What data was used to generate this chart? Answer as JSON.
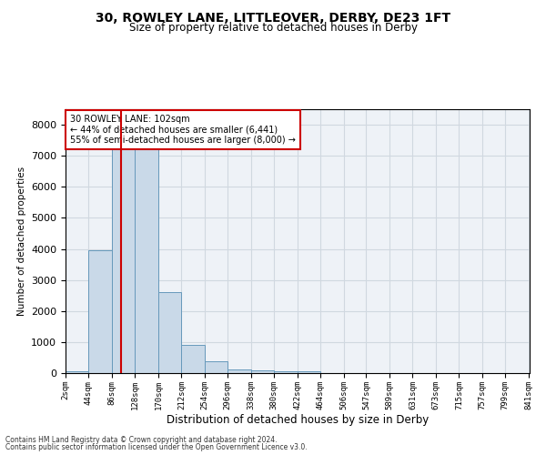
{
  "title1": "30, ROWLEY LANE, LITTLEOVER, DERBY, DE23 1FT",
  "title2": "Size of property relative to detached houses in Derby",
  "xlabel": "Distribution of detached houses by size in Derby",
  "ylabel": "Number of detached properties",
  "footnote1": "Contains HM Land Registry data © Crown copyright and database right 2024.",
  "footnote2": "Contains public sector information licensed under the Open Government Licence v3.0.",
  "annotation_title": "30 ROWLEY LANE: 102sqm",
  "annotation_line1": "← 44% of detached houses are smaller (6,441)",
  "annotation_line2": "55% of semi-detached houses are larger (8,000) →",
  "property_size_sqm": 102,
  "bin_starts": [
    2,
    44,
    86,
    128,
    170,
    212,
    254,
    296,
    338,
    380,
    422,
    464,
    506,
    547,
    589,
    631,
    673,
    715,
    757,
    799
  ],
  "bar_heights": [
    50,
    3950,
    7350,
    7350,
    2600,
    900,
    380,
    130,
    100,
    60,
    50,
    0,
    0,
    0,
    0,
    0,
    0,
    0,
    0,
    0
  ],
  "bar_color": "#c9d9e8",
  "bar_edgecolor": "#6699bb",
  "vline_color": "#cc0000",
  "vline_x": 102,
  "annotation_box_edgecolor": "#cc0000",
  "annotation_box_facecolor": "#ffffff",
  "grid_color": "#d0d8e0",
  "bg_color": "#eef2f7",
  "ylim": [
    0,
    8500
  ],
  "yticks": [
    0,
    1000,
    2000,
    3000,
    4000,
    5000,
    6000,
    7000,
    8000
  ],
  "tick_labels": [
    "2sqm",
    "44sqm",
    "86sqm",
    "128sqm",
    "170sqm",
    "212sqm",
    "254sqm",
    "296sqm",
    "338sqm",
    "380sqm",
    "422sqm",
    "464sqm",
    "506sqm",
    "547sqm",
    "589sqm",
    "631sqm",
    "673sqm",
    "715sqm",
    "757sqm",
    "799sqm",
    "841sqm"
  ],
  "figsize": [
    6.0,
    5.0
  ],
  "dpi": 100
}
